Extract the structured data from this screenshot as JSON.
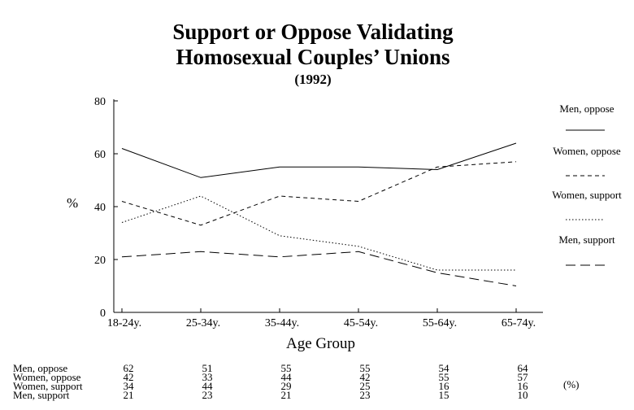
{
  "chart_data": {
    "type": "line",
    "title": "Support or Oppose Validating",
    "title_line2": "Homosexual Couples’ Unions",
    "subtitle": "(1992)",
    "xlabel": "Age Group",
    "ylabel": "%",
    "categories": [
      "18-24y.",
      "25-34y.",
      "35-44y.",
      "45-54y.",
      "55-64y.",
      "65-74y."
    ],
    "ylim": [
      0,
      80
    ],
    "yticks": [
      0,
      20,
      40,
      60,
      80
    ],
    "grid": false,
    "legend_position": "right",
    "unit": "(%)",
    "series": [
      {
        "name": "Men, oppose",
        "values": [
          62,
          51,
          55,
          55,
          54,
          64
        ],
        "dash": "solid"
      },
      {
        "name": "Women, oppose",
        "values": [
          42,
          33,
          44,
          42,
          55,
          57
        ],
        "dash": "short-dash"
      },
      {
        "name": "Women, support",
        "values": [
          34,
          44,
          29,
          25,
          16,
          16
        ],
        "dash": "dotted"
      },
      {
        "name": "Men, support",
        "values": [
          21,
          23,
          21,
          23,
          15,
          10
        ],
        "dash": "long-dash"
      }
    ]
  }
}
